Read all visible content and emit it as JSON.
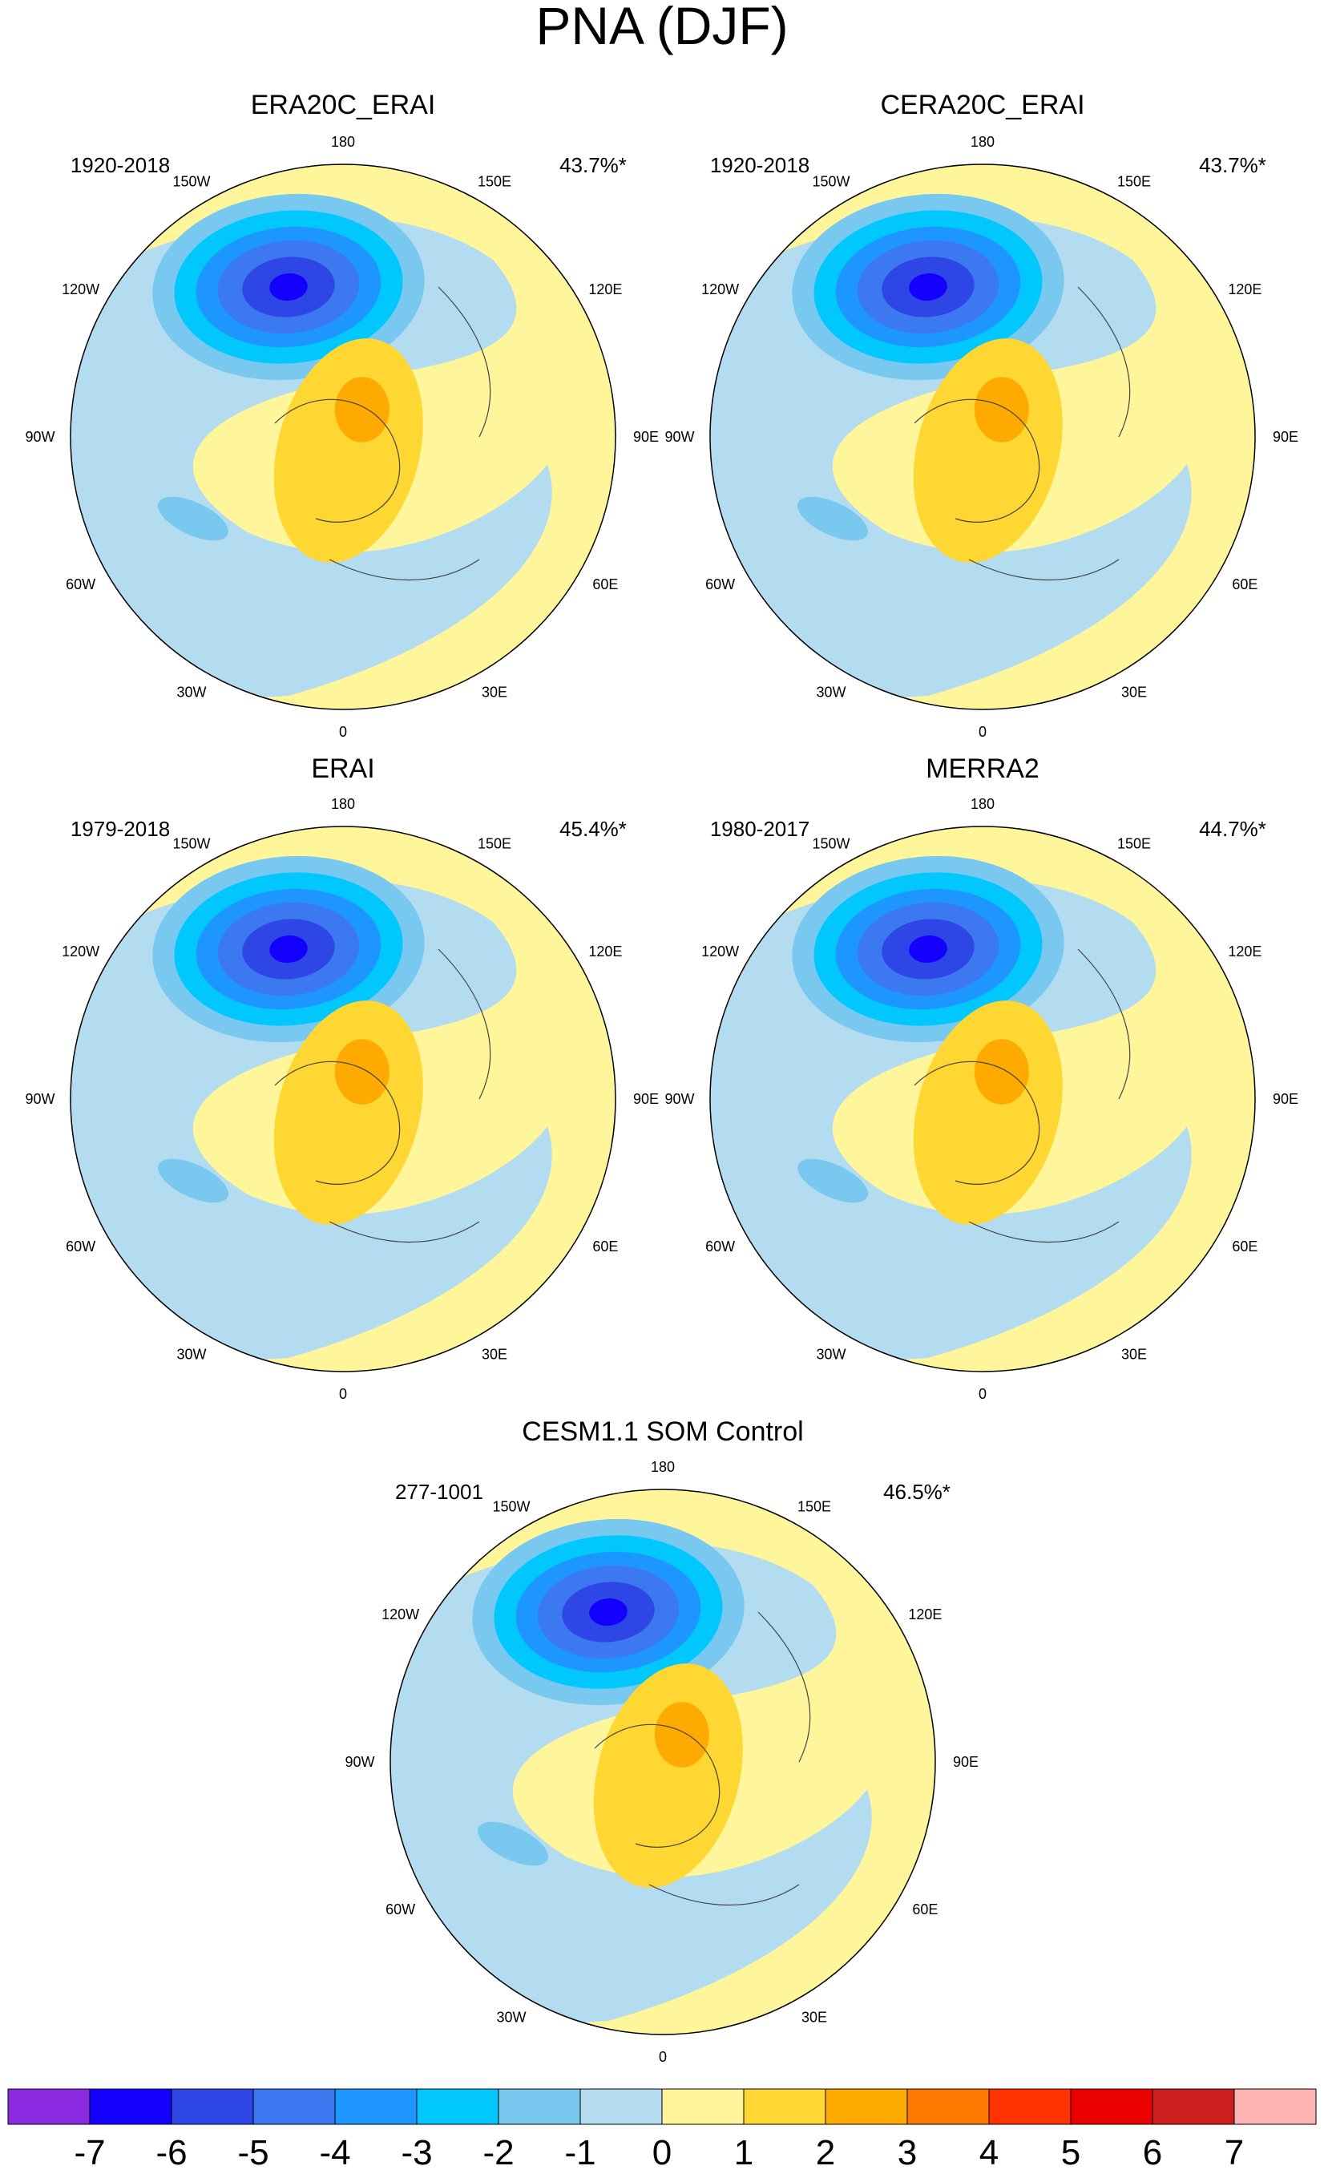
{
  "figure_title": "PNA (DJF)",
  "panels": [
    {
      "title": "ERA20C_ERAI",
      "period": "1920-2018",
      "variance": "43.7%*"
    },
    {
      "title": "CERA20C_ERAI",
      "period": "1920-2018",
      "variance": "43.7%*"
    },
    {
      "title": "ERAI",
      "period": "1979-2018",
      "variance": "45.4%*"
    },
    {
      "title": "MERRA2",
      "period": "1980-2017",
      "variance": "44.7%*"
    },
    {
      "title": "CESM1.1 SOM Control",
      "period": "277-1001",
      "variance": "46.5%*"
    }
  ],
  "longitude_labels": [
    "180",
    "150E",
    "120E",
    "90E",
    "60E",
    "30E",
    "0",
    "30W",
    "60W",
    "90W",
    "120W",
    "150W"
  ],
  "colorbar": {
    "labels": [
      "-7",
      "-6",
      "-5",
      "-4",
      "-3",
      "-2",
      "-1",
      "0",
      "1",
      "2",
      "3",
      "4",
      "5",
      "6",
      "7"
    ],
    "colors": [
      "#8a2be2",
      "#1400ff",
      "#2e46e6",
      "#3c78f0",
      "#1e96ff",
      "#00c8ff",
      "#78c8f0",
      "#b4dcf0",
      "#fff59b",
      "#ffd732",
      "#ffaa00",
      "#ff7800",
      "#ff3200",
      "#eb0000",
      "#cd1e1e",
      "#ffb4b4"
    ]
  }
}
